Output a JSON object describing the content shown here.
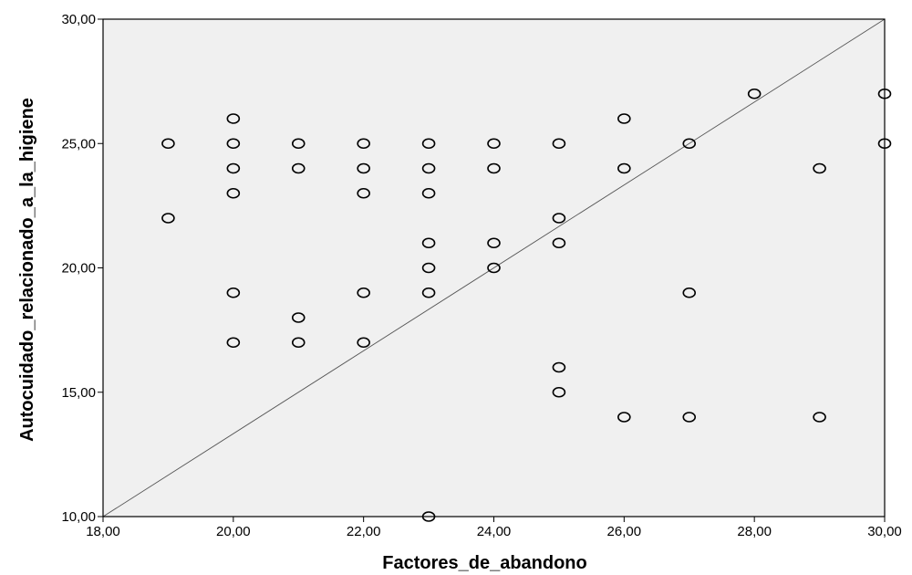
{
  "chart_data": {
    "type": "scatter",
    "title": "",
    "xlabel": "Factores_de_abandono",
    "ylabel": "Autocuidado_relacionado_a_la_higiene",
    "xlim": [
      18,
      30
    ],
    "ylim": [
      10,
      30
    ],
    "x_ticks": [
      18,
      20,
      22,
      24,
      26,
      28,
      30
    ],
    "y_ticks": [
      10,
      15,
      20,
      25,
      30
    ],
    "x_tick_labels": [
      "18,00",
      "20,00",
      "22,00",
      "24,00",
      "26,00",
      "28,00",
      "30,00"
    ],
    "y_tick_labels": [
      "10,00",
      "15,00",
      "20,00",
      "25,00",
      "30,00"
    ],
    "grid": false,
    "plot_background": "#f0f0f0",
    "marker_color": "#000000",
    "marker": "open-circle",
    "reference_line": {
      "from": [
        18,
        10
      ],
      "to": [
        30,
        30
      ],
      "color": "#555555"
    },
    "points": [
      {
        "x": 19,
        "y": 25
      },
      {
        "x": 19,
        "y": 22
      },
      {
        "x": 20,
        "y": 26
      },
      {
        "x": 20,
        "y": 25
      },
      {
        "x": 20,
        "y": 24
      },
      {
        "x": 20,
        "y": 23
      },
      {
        "x": 20,
        "y": 19
      },
      {
        "x": 20,
        "y": 17
      },
      {
        "x": 21,
        "y": 25
      },
      {
        "x": 21,
        "y": 24
      },
      {
        "x": 21,
        "y": 18
      },
      {
        "x": 21,
        "y": 17
      },
      {
        "x": 22,
        "y": 25
      },
      {
        "x": 22,
        "y": 24
      },
      {
        "x": 22,
        "y": 23
      },
      {
        "x": 22,
        "y": 19
      },
      {
        "x": 22,
        "y": 17
      },
      {
        "x": 23,
        "y": 25
      },
      {
        "x": 23,
        "y": 24
      },
      {
        "x": 23,
        "y": 23
      },
      {
        "x": 23,
        "y": 21
      },
      {
        "x": 23,
        "y": 20
      },
      {
        "x": 23,
        "y": 19
      },
      {
        "x": 23,
        "y": 10
      },
      {
        "x": 24,
        "y": 25
      },
      {
        "x": 24,
        "y": 24
      },
      {
        "x": 24,
        "y": 21
      },
      {
        "x": 24,
        "y": 20
      },
      {
        "x": 25,
        "y": 25
      },
      {
        "x": 25,
        "y": 22
      },
      {
        "x": 25,
        "y": 21
      },
      {
        "x": 25,
        "y": 16
      },
      {
        "x": 25,
        "y": 15
      },
      {
        "x": 26,
        "y": 26
      },
      {
        "x": 26,
        "y": 24
      },
      {
        "x": 26,
        "y": 14
      },
      {
        "x": 27,
        "y": 25
      },
      {
        "x": 27,
        "y": 19
      },
      {
        "x": 27,
        "y": 14
      },
      {
        "x": 28,
        "y": 27
      },
      {
        "x": 29,
        "y": 24
      },
      {
        "x": 29,
        "y": 14
      },
      {
        "x": 30,
        "y": 27
      },
      {
        "x": 30,
        "y": 25
      }
    ]
  }
}
